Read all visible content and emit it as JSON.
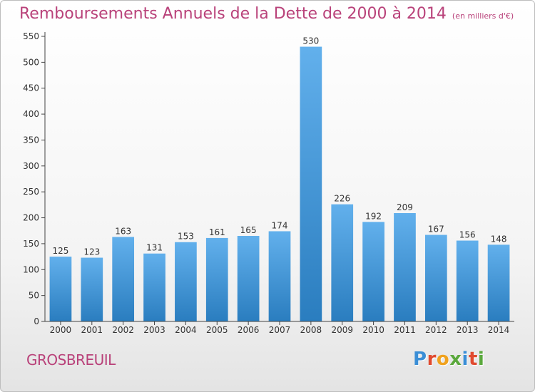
{
  "header": {
    "title": "Remboursements Annuels de la Dette de 2000 à 2014",
    "unit": "(en milliers d'€)"
  },
  "footer": {
    "place": "GROSBREUIL",
    "logo_text": "Proxiti",
    "logo_colors": [
      "#3a8ed6",
      "#e04a2f",
      "#f0a21e",
      "#5aa83c",
      "#3a8ed6",
      "#e04a2f",
      "#5aa83c"
    ]
  },
  "chart_data": {
    "type": "bar",
    "title": "Remboursements Annuels de la Dette de 2000 à 2014",
    "subtitle": "(en milliers d'€)",
    "xlabel": "",
    "ylabel": "",
    "categories": [
      "2000",
      "2001",
      "2002",
      "2003",
      "2004",
      "2005",
      "2006",
      "2007",
      "2008",
      "2009",
      "2010",
      "2011",
      "2012",
      "2013",
      "2014"
    ],
    "values": [
      125,
      123,
      163,
      131,
      153,
      161,
      165,
      174,
      530,
      226,
      192,
      209,
      167,
      156,
      148
    ],
    "ylim": [
      0,
      550
    ],
    "yticks": [
      0,
      50,
      100,
      150,
      200,
      250,
      300,
      350,
      400,
      450,
      500,
      550
    ],
    "grid": false,
    "bar_color_top": "#62b0ec",
    "bar_color_bottom": "#2a7dbf",
    "axis_color": "#444444"
  }
}
